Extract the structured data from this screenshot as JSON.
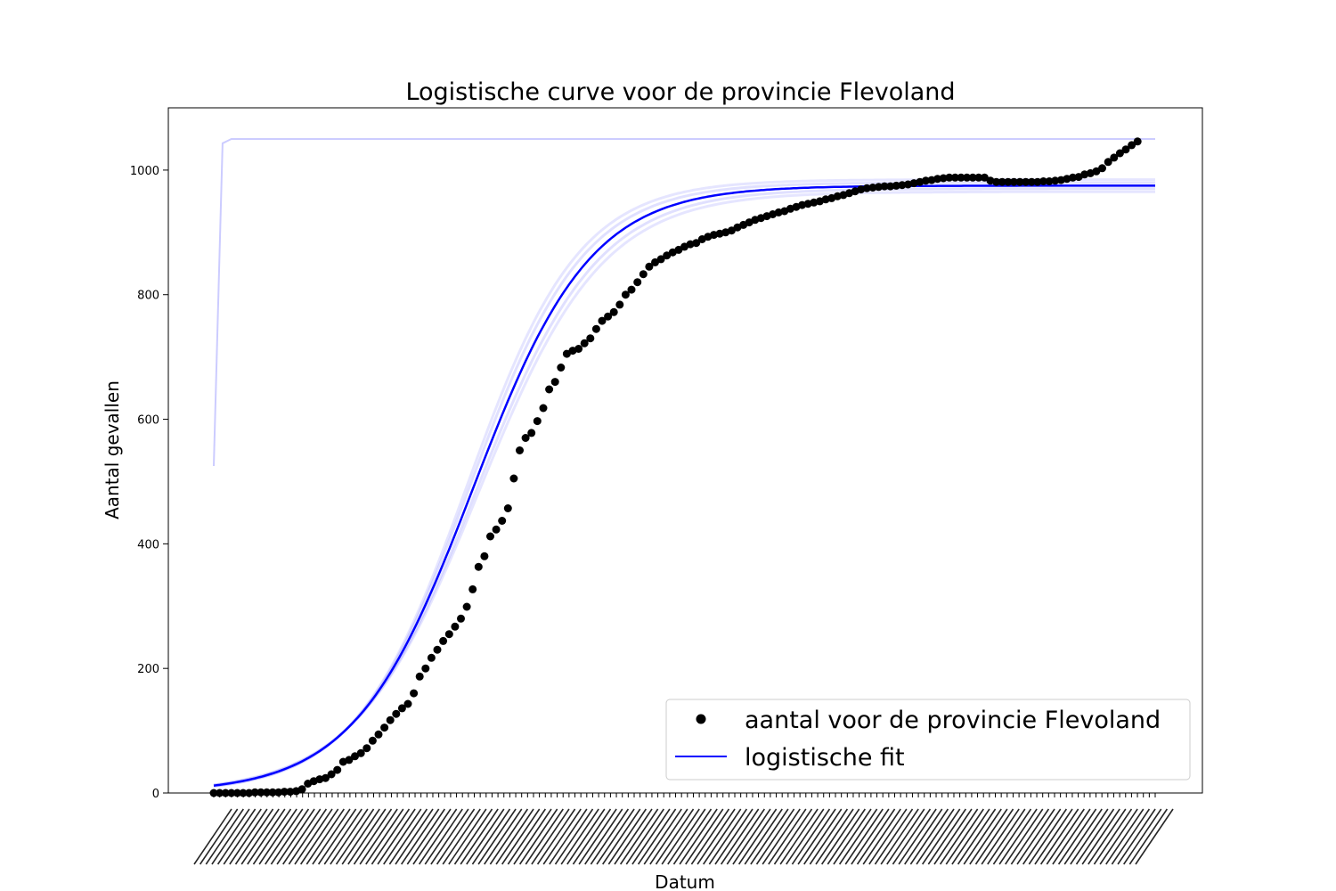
{
  "chart_data": {
    "type": "scatter",
    "title": "Logistische curve voor de provincie Flevoland",
    "xlabel": "Datum",
    "ylabel": "Aantal gevallen",
    "xlim": [
      0,
      160
    ],
    "ylim": [
      0,
      1100
    ],
    "y_ticks": [
      0,
      200,
      400,
      600,
      800,
      1000
    ],
    "x_tick_count": 160,
    "x_tick_labels_legible": false,
    "grid": false,
    "legend_position": "lower right",
    "colors": {
      "points": "#000000",
      "fit": "#0000ff",
      "fit_ensemble": "#ccccff"
    },
    "series": [
      {
        "name": "aantal voor de provincie Flevoland",
        "kind": "points",
        "x": [
          0,
          1,
          2,
          3,
          4,
          5,
          6,
          7,
          8,
          9,
          10,
          11,
          12,
          13,
          14,
          15,
          16,
          17,
          18,
          19,
          20,
          21,
          22,
          23,
          24,
          25,
          26,
          27,
          28,
          29,
          30,
          31,
          32,
          33,
          34,
          35,
          36,
          37,
          38,
          39,
          40,
          41,
          42,
          43,
          44,
          45,
          46,
          47,
          48,
          49,
          50,
          51,
          52,
          53,
          54,
          55,
          56,
          57,
          58,
          59,
          60,
          61,
          62,
          63,
          64,
          65,
          66,
          67,
          68,
          69,
          70,
          71,
          72,
          73,
          74,
          75,
          76,
          77,
          78,
          79,
          80,
          81,
          82,
          83,
          84,
          85,
          86,
          87,
          88,
          89,
          90,
          91,
          92,
          93,
          94,
          95,
          96,
          97,
          98,
          99,
          100,
          101,
          102,
          103,
          104,
          105,
          106,
          107,
          108,
          109,
          110,
          111,
          112,
          113,
          114,
          115,
          116,
          117,
          118,
          119,
          120,
          121,
          122,
          123,
          124,
          125,
          126,
          127,
          128,
          129,
          130,
          131,
          132,
          133,
          134,
          135,
          136,
          137,
          138,
          139,
          140,
          141,
          142,
          143,
          144,
          145,
          146,
          147,
          148,
          149,
          150,
          151,
          152,
          153,
          154,
          155,
          156,
          157
        ],
        "y": [
          0,
          0,
          0,
          0,
          0,
          0,
          0,
          1,
          1,
          1,
          1,
          1,
          2,
          2,
          3,
          6,
          15,
          19,
          22,
          24,
          30,
          37,
          50,
          53,
          59,
          64,
          72,
          84,
          94,
          105,
          117,
          127,
          136,
          143,
          160,
          187,
          200,
          217,
          230,
          244,
          255,
          267,
          280,
          299,
          327,
          363,
          380,
          412,
          423,
          437,
          457,
          505,
          550,
          570,
          578,
          597,
          618,
          648,
          660,
          683,
          705,
          710,
          713,
          722,
          730,
          745,
          758,
          765,
          772,
          784,
          800,
          808,
          820,
          833,
          845,
          852,
          857,
          863,
          868,
          872,
          877,
          881,
          883,
          889,
          893,
          896,
          898,
          900,
          903,
          908,
          912,
          916,
          920,
          923,
          926,
          929,
          932,
          934,
          938,
          941,
          944,
          946,
          948,
          950,
          953,
          955,
          958,
          960,
          963,
          966,
          969,
          971,
          972,
          973,
          974,
          974,
          975,
          976,
          977,
          979,
          981,
          983,
          984,
          986,
          987,
          988,
          988,
          988,
          988,
          988,
          988,
          988,
          983,
          981,
          981,
          981,
          981,
          981,
          981,
          981,
          981,
          982,
          982,
          983,
          984,
          986,
          988,
          989,
          993,
          995,
          998,
          1003,
          1013,
          1020,
          1027,
          1033,
          1040,
          1046
        ]
      },
      {
        "name": "logistische fit",
        "kind": "line",
        "model": "logistic",
        "K": 975,
        "r": 0.1,
        "x0": 44,
        "x_range": [
          0,
          160
        ]
      }
    ],
    "extra_lines": [
      {
        "name": "",
        "kind": "faint-line",
        "x": [
          0,
          1.5,
          3,
          160
        ],
        "y": [
          525,
          1043,
          1050,
          1050
        ]
      }
    ]
  }
}
